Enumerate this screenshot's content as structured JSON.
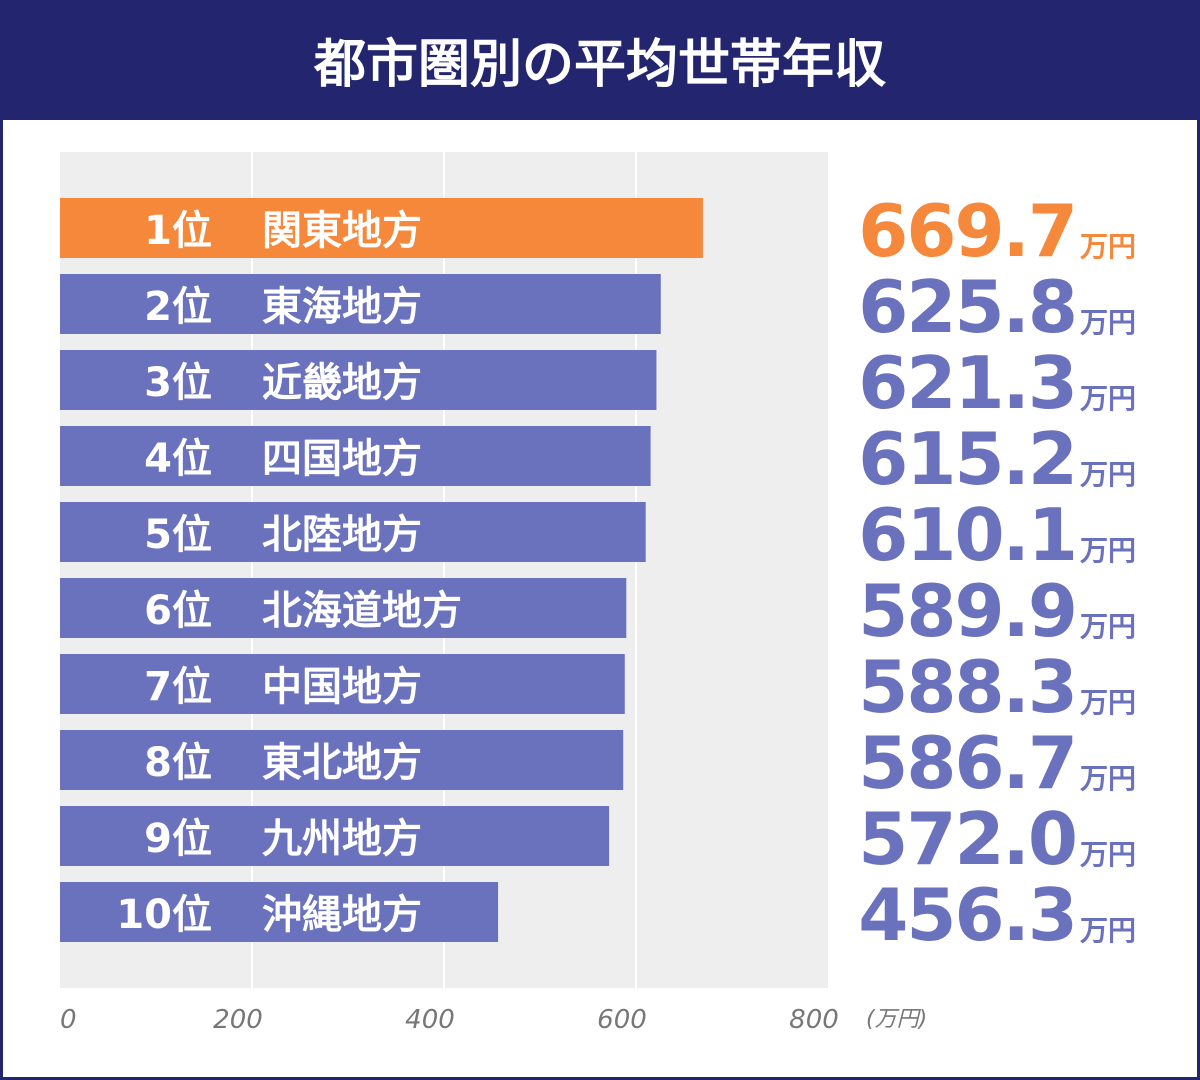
{
  "chart_data": {
    "type": "bar",
    "orientation": "horizontal",
    "title": "都市圏別の平均世帯年収",
    "ranks": [
      "1位",
      "2位",
      "3位",
      "4位",
      "5位",
      "6位",
      "7位",
      "8位",
      "9位",
      "10位"
    ],
    "categories": [
      "関東地方",
      "東海地方",
      "近畿地方",
      "四国地方",
      "北陸地方",
      "北海道地方",
      "中国地方",
      "東北地方",
      "九州地方",
      "沖縄地方"
    ],
    "values": [
      669.7,
      625.8,
      621.3,
      615.2,
      610.1,
      589.9,
      588.3,
      586.7,
      572.0,
      456.3
    ],
    "value_labels": [
      "669.7",
      "625.8",
      "621.3",
      "615.2",
      "610.1",
      "589.9",
      "588.3",
      "586.7",
      "572.0",
      "456.3"
    ],
    "value_unit": "万円",
    "colors": [
      "#f5883a",
      "#6b72bd",
      "#6b72bd",
      "#6b72bd",
      "#6b72bd",
      "#6b72bd",
      "#6b72bd",
      "#6b72bd",
      "#6b72bd",
      "#6b72bd"
    ],
    "xlim": [
      0,
      800
    ],
    "xticks": [
      0,
      200,
      400,
      600,
      800
    ],
    "x_unit": "(万円)",
    "grid": true
  }
}
